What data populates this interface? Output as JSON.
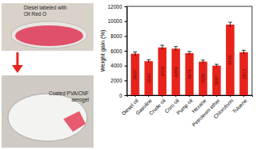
{
  "chart_data": {
    "type": "bar",
    "annotations": [
      "Diesel labeled with Oil Red O",
      "Coated PVA/CNF aerogel"
    ],
    "y_label": "Weight gain (%)",
    "categories": [
      "Diesel oil",
      "Gasoline",
      "Crude oil",
      "Corn oil",
      "Pump oil",
      "Hexane",
      "Petroleum ether",
      "Chloroform",
      "Toluene"
    ],
    "values": [
      5604,
      4594,
      6448,
      6289,
      5679,
      4539,
      3997,
      9535,
      5812
    ],
    "errors": [
      250,
      200,
      300,
      280,
      220,
      200,
      180,
      320,
      260
    ],
    "color": "#e8231b",
    "ylim": [
      0,
      12000
    ],
    "yticks": [
      0,
      2000,
      4000,
      6000,
      8000,
      10000,
      12000
    ],
    "data_labels": true
  }
}
